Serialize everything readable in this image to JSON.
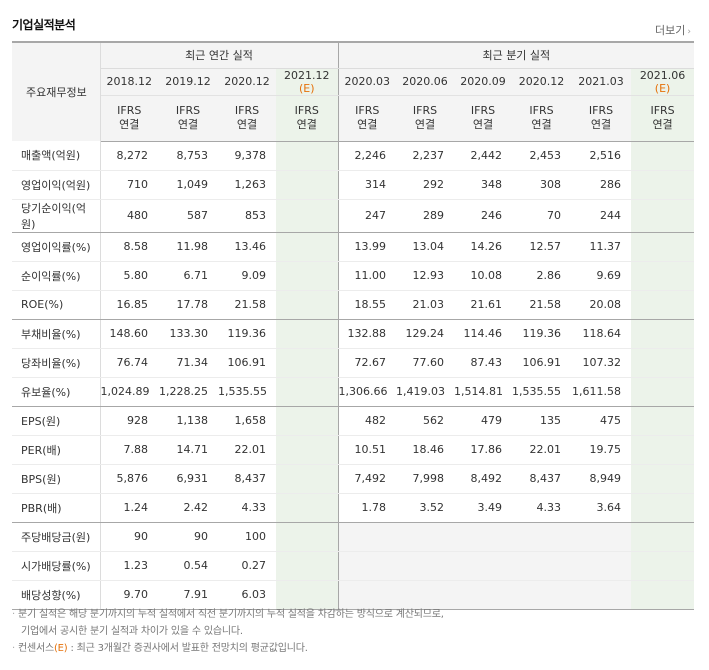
{
  "section_title": "기업실적분석",
  "more_label": "더보기",
  "corner_label": "주요재무정보",
  "annual_group": "최근 연간 실적",
  "quarter_group": "최근 분기 실적",
  "periods": [
    {
      "label": "2018.12",
      "est": ""
    },
    {
      "label": "2019.12",
      "est": ""
    },
    {
      "label": "2020.12",
      "est": ""
    },
    {
      "label": "2021.12",
      "est": "(E)"
    },
    {
      "label": "2020.03",
      "est": ""
    },
    {
      "label": "2020.06",
      "est": ""
    },
    {
      "label": "2020.09",
      "est": ""
    },
    {
      "label": "2020.12",
      "est": ""
    },
    {
      "label": "2021.03",
      "est": ""
    },
    {
      "label": "2021.06",
      "est": "(E)"
    }
  ],
  "ifrs_top": "IFRS",
  "ifrs_bottom": "연결",
  "rows": [
    {
      "label": "매출액(억원)",
      "values": [
        "8,272",
        "8,753",
        "9,378",
        "",
        "2,246",
        "2,237",
        "2,442",
        "2,453",
        "2,516",
        ""
      ]
    },
    {
      "label": "영업이익(억원)",
      "values": [
        "710",
        "1,049",
        "1,263",
        "",
        "314",
        "292",
        "348",
        "308",
        "286",
        ""
      ]
    },
    {
      "label": "당기순이익(억원)",
      "values": [
        "480",
        "587",
        "853",
        "",
        "247",
        "289",
        "246",
        "70",
        "244",
        ""
      ]
    },
    {
      "label": "영업이익률(%)",
      "values": [
        "8.58",
        "11.98",
        "13.46",
        "",
        "13.99",
        "13.04",
        "14.26",
        "12.57",
        "11.37",
        ""
      ]
    },
    {
      "label": "순이익률(%)",
      "values": [
        "5.80",
        "6.71",
        "9.09",
        "",
        "11.00",
        "12.93",
        "10.08",
        "2.86",
        "9.69",
        ""
      ]
    },
    {
      "label": "ROE(%)",
      "values": [
        "16.85",
        "17.78",
        "21.58",
        "",
        "18.55",
        "21.03",
        "21.61",
        "21.58",
        "20.08",
        ""
      ]
    },
    {
      "label": "부채비율(%)",
      "values": [
        "148.60",
        "133.30",
        "119.36",
        "",
        "132.88",
        "129.24",
        "114.46",
        "119.36",
        "118.64",
        ""
      ]
    },
    {
      "label": "당좌비율(%)",
      "values": [
        "76.74",
        "71.34",
        "106.91",
        "",
        "72.67",
        "77.60",
        "87.43",
        "106.91",
        "107.32",
        ""
      ]
    },
    {
      "label": "유보율(%)",
      "values": [
        "1,024.89",
        "1,228.25",
        "1,535.55",
        "",
        "1,306.66",
        "1,419.03",
        "1,514.81",
        "1,535.55",
        "1,611.58",
        ""
      ]
    },
    {
      "label": "EPS(원)",
      "values": [
        "928",
        "1,138",
        "1,658",
        "",
        "482",
        "562",
        "479",
        "135",
        "475",
        ""
      ]
    },
    {
      "label": "PER(배)",
      "values": [
        "7.88",
        "14.71",
        "22.01",
        "",
        "10.51",
        "18.46",
        "17.86",
        "22.01",
        "19.75",
        ""
      ]
    },
    {
      "label": "BPS(원)",
      "values": [
        "5,876",
        "6,931",
        "8,437",
        "",
        "7,492",
        "7,998",
        "8,492",
        "8,437",
        "8,949",
        ""
      ]
    },
    {
      "label": "PBR(배)",
      "values": [
        "1.24",
        "2.42",
        "4.33",
        "",
        "1.78",
        "3.52",
        "3.49",
        "4.33",
        "3.64",
        ""
      ]
    },
    {
      "label": "주당배당금(원)",
      "values": [
        "90",
        "90",
        "100",
        "",
        "",
        "",
        "",
        "",
        "",
        ""
      ]
    },
    {
      "label": "시가배당률(%)",
      "values": [
        "1.23",
        "0.54",
        "0.27",
        "",
        "",
        "",
        "",
        "",
        "",
        ""
      ]
    },
    {
      "label": "배당성향(%)",
      "values": [
        "9.70",
        "7.91",
        "6.03",
        "",
        "",
        "",
        "",
        "",
        "",
        ""
      ]
    }
  ],
  "notes": {
    "line1": "분기 실적은 해당 분기까지의 누적 실적에서 직전 분기까지의 누적 실적을 차감하는 방식으로 계산되므로,",
    "line2": "기업에서 공시한 분기 실적과 차이가 있을 수 있습니다.",
    "line3_a": "컨센서스",
    "line3_e": "(E)",
    "line3_b": " : 최근 3개월간 증권사에서 발표한 전망치의 평균값입니다."
  }
}
